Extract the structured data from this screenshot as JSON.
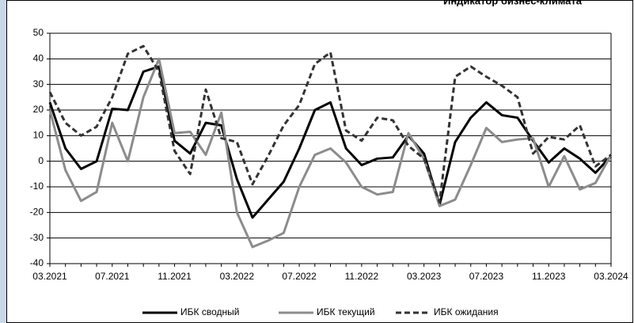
{
  "chart_data": {
    "type": "line",
    "title": "Индикатор бизнес-климата",
    "categories": [
      "03.2021",
      null,
      null,
      null,
      "07.2021",
      null,
      null,
      null,
      "11.2021",
      null,
      null,
      null,
      "03.2022",
      null,
      null,
      null,
      "07.2022",
      null,
      null,
      null,
      "11.2022",
      null,
      null,
      null,
      "03.2023",
      null,
      null,
      null,
      "07.2023",
      null,
      null,
      null,
      "11.2023",
      null,
      null,
      null,
      "03.2024"
    ],
    "series": [
      {
        "name": "ИБК сводный",
        "color": "#000000",
        "line_style": "solid",
        "values": [
          23,
          5,
          -3,
          0,
          20.5,
          20,
          35,
          37,
          8,
          3,
          15,
          14,
          -7,
          -22,
          -15,
          -8,
          5,
          20,
          23,
          5,
          -1.5,
          1,
          1.5,
          10,
          3,
          -17,
          7.5,
          17,
          23,
          18,
          17,
          8,
          -0.5,
          5,
          1,
          -4.5,
          2
        ]
      },
      {
        "name": "ИБК текущий",
        "color": "#8c8c8c",
        "line_style": "solid",
        "values": [
          20,
          -3.5,
          -15.5,
          -12,
          15,
          0,
          25,
          40,
          11,
          11.5,
          2.5,
          19,
          -20,
          -33.5,
          -31,
          -28,
          -10,
          2.5,
          5,
          -0.5,
          -10,
          -13,
          -12,
          11,
          1,
          -17.5,
          -15,
          -1.5,
          13,
          7.5,
          8.5,
          9,
          -10,
          2,
          -11,
          -8.5,
          2.5
        ]
      },
      {
        "name": "ИБК ожидания",
        "color": "#333333",
        "line_style": "dashed",
        "values": [
          27,
          15,
          10,
          13.5,
          25,
          42,
          45,
          35,
          4,
          -5,
          28,
          9,
          7.5,
          -9,
          2,
          14,
          22,
          38,
          42.5,
          12,
          8,
          17,
          16,
          6,
          1,
          -16,
          33,
          37,
          33,
          29.5,
          25,
          3,
          9.5,
          8.5,
          14,
          -2,
          2.5
        ]
      }
    ],
    "ylim": [
      -40,
      50
    ],
    "yticks": [
      -40,
      -30,
      -20,
      -10,
      0,
      10,
      20,
      30,
      40,
      50
    ],
    "grid": true,
    "legend": "bottom"
  }
}
